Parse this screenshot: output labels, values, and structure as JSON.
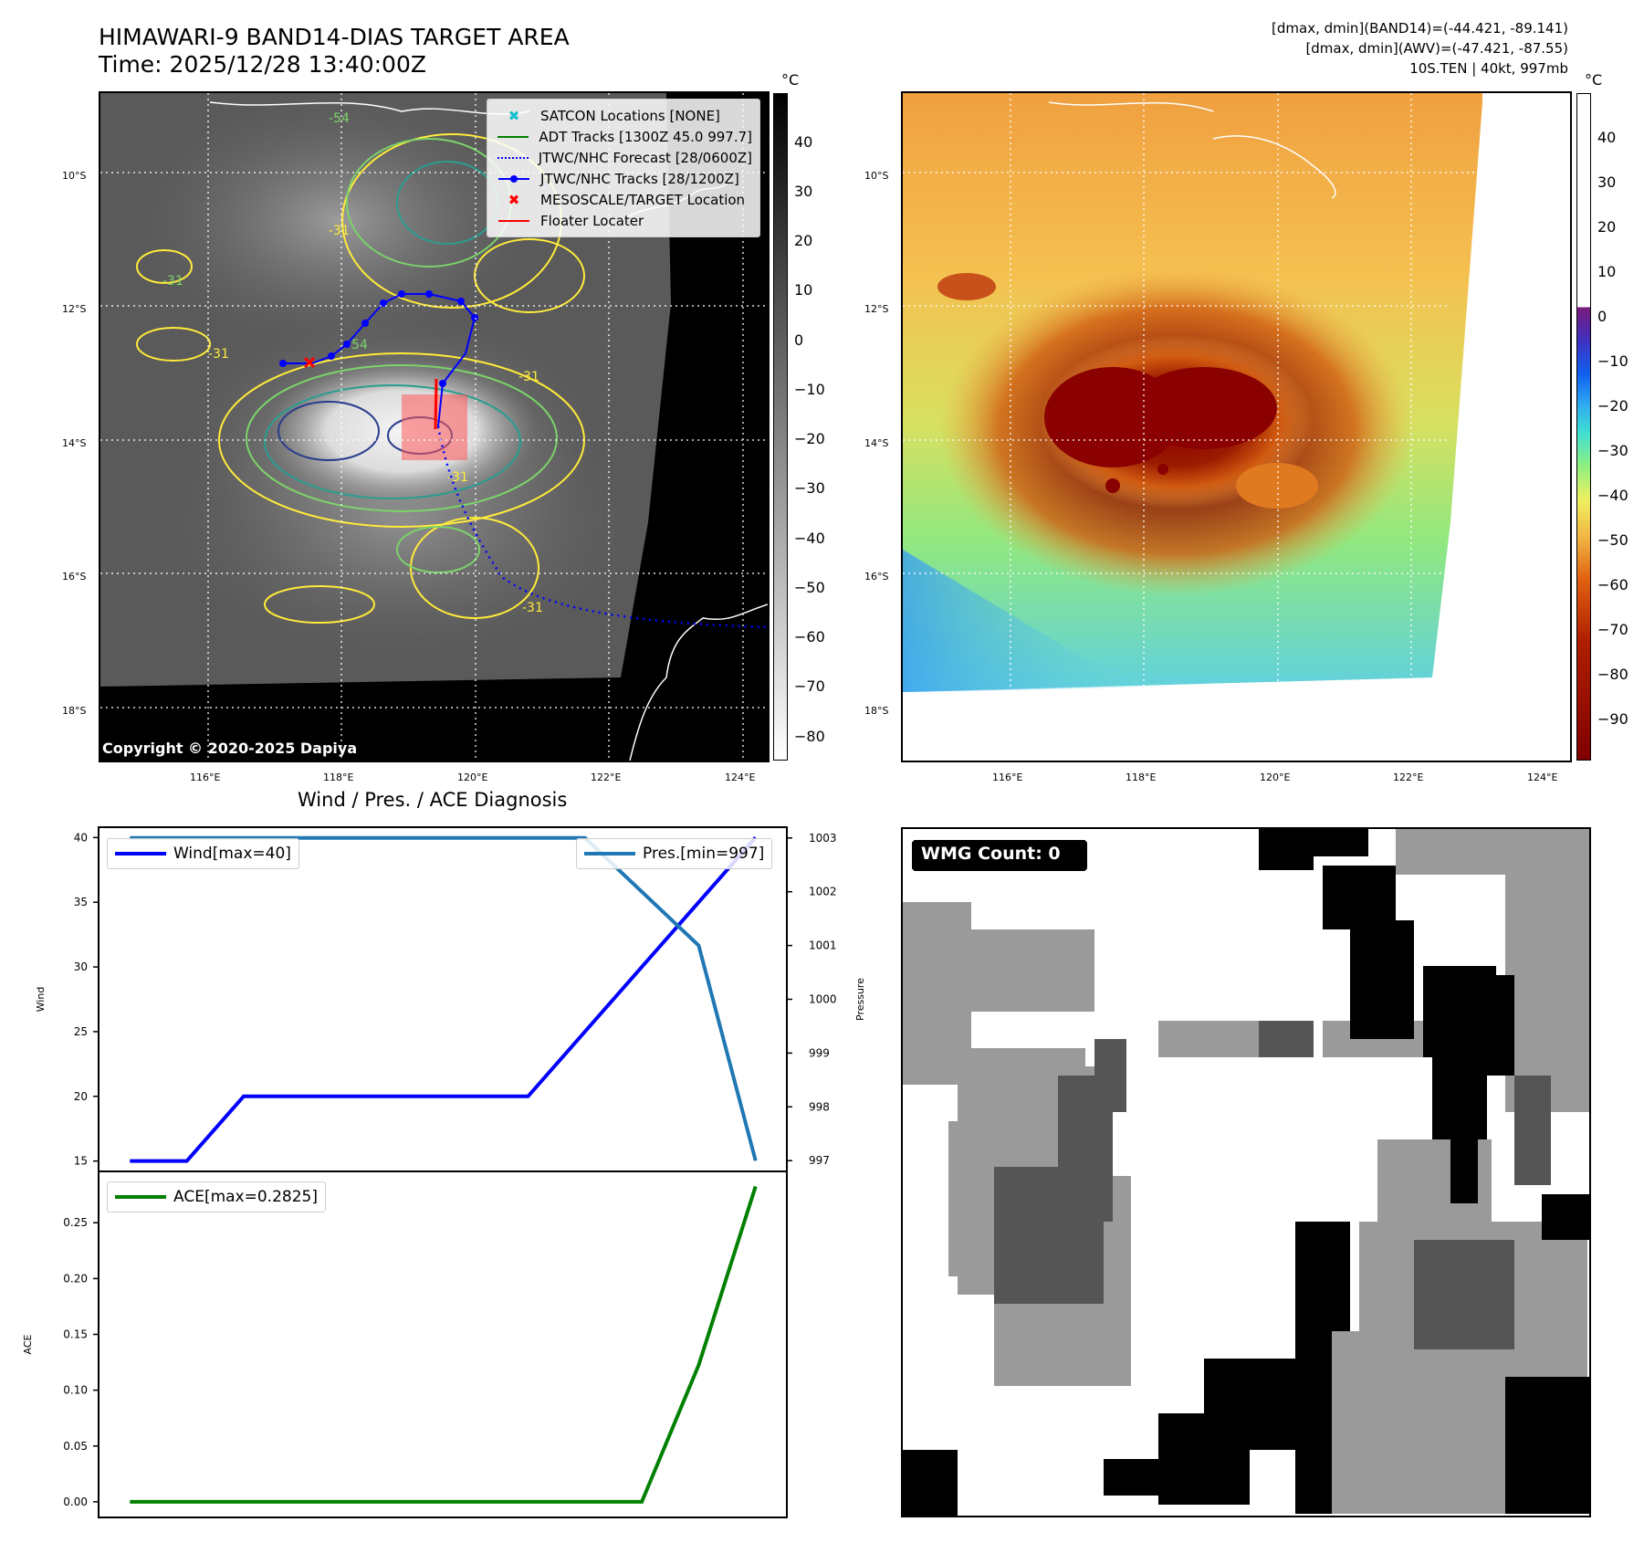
{
  "header": {
    "title_line1": "HIMAWARI-9 BAND14-DIAS TARGET AREA",
    "title_line2": "Time: 2025/12/28 13:40:00Z",
    "stats_line1": "[dmax, dmin](BAND14)=(-44.421, -89.141)",
    "stats_line2": "[dmax, dmin](AWV)=(-47.421, -87.55)",
    "stats_line3": "10S.TEN | 40kt, 997mb"
  },
  "map": {
    "lat_labels": [
      "10°S",
      "12°S",
      "14°S",
      "16°S",
      "18°S"
    ],
    "lon_labels": [
      "116°E",
      "118°E",
      "120°E",
      "122°E",
      "124°E"
    ],
    "copyright": "Copyright © 2020-2025 Dapiya",
    "contour_labels": [
      "-54",
      "-31",
      "-31",
      "-31",
      "-54",
      "-31",
      "-31",
      "-31"
    ],
    "legend": [
      {
        "label": "SATCON Locations [NONE]",
        "color": "#17becf",
        "symbol": "x-marker"
      },
      {
        "label": "ADT Tracks [1300Z 45.0 997.7]",
        "color": "#008000",
        "symbol": "solid-line"
      },
      {
        "label": "JTWC/NHC Forecast [28/0600Z]",
        "color": "#0000ff",
        "symbol": "dotted-line"
      },
      {
        "label": "JTWC/NHC Tracks [28/1200Z]",
        "color": "#0000ff",
        "symbol": "line-dot"
      },
      {
        "label": "MESOSCALE/TARGET Location",
        "color": "#ff0000",
        "symbol": "x-marker"
      },
      {
        "label": "Floater Locater",
        "color": "#ff0000",
        "symbol": "solid-line"
      }
    ]
  },
  "colorbars": {
    "unit": "°C",
    "gray_ticks": [
      "40",
      "30",
      "20",
      "10",
      "0",
      "−10",
      "−20",
      "−30",
      "−40",
      "−50",
      "−60",
      "−70",
      "−80"
    ],
    "color_ticks": [
      "40",
      "30",
      "20",
      "10",
      "0",
      "−10",
      "−20",
      "−30",
      "−40",
      "−50",
      "−60",
      "−70",
      "−80",
      "−90"
    ]
  },
  "wmg": {
    "count_label": "WMG Count: 0"
  },
  "colors": {
    "wind": "#0000ff",
    "pressure": "#1f77b4",
    "ace": "#008000",
    "jtwc": "#0000ff",
    "target": "#ff0000",
    "contour_yellow": "#ffeb3b",
    "contour_green": "#7cd36a",
    "contour_teal": "#2a9d8f",
    "contour_navy": "#283c8c"
  },
  "chart_data": [
    {
      "type": "line",
      "title": "Wind / Pres. / ACE Diagnosis",
      "x": [
        0,
        1,
        2,
        3,
        4,
        5,
        6,
        7,
        8,
        9,
        10,
        11
      ],
      "ylabel": "Wind",
      "ylim": [
        14.2,
        40.8
      ],
      "yticks": [
        "15",
        "20",
        "25",
        "30",
        "35",
        "40"
      ],
      "y2label": "Pressure",
      "y2lim": [
        996.8,
        1003.2
      ],
      "y2ticks": [
        "997",
        "998",
        "999",
        "1000",
        "1001",
        "1002",
        "1003"
      ],
      "series": [
        {
          "name": "Wind[max=40]",
          "axis": "left",
          "values": [
            15,
            15,
            20,
            20,
            20,
            20,
            20,
            20,
            25,
            30,
            35,
            40
          ]
        },
        {
          "name": "Pres.[min=997]",
          "axis": "right",
          "values": [
            1003,
            1003,
            1003,
            1003,
            1003,
            1003,
            1003,
            1003,
            1003,
            1002,
            1001,
            997
          ]
        }
      ],
      "legend": [
        "top-left",
        "top-right"
      ]
    },
    {
      "type": "line",
      "x": [
        0,
        1,
        2,
        3,
        4,
        5,
        6,
        7,
        8,
        9,
        10,
        11
      ],
      "ylabel": "ACE",
      "ylim": [
        -0.014,
        0.296
      ],
      "yticks": [
        "0.00",
        "0.05",
        "0.10",
        "0.15",
        "0.20",
        "0.25"
      ],
      "series": [
        {
          "name": "ACE[max=0.2825]",
          "values": [
            0,
            0,
            0,
            0,
            0,
            0,
            0,
            0,
            0,
            0,
            0.1225,
            0.2825
          ]
        }
      ],
      "legend": "top-left"
    }
  ]
}
